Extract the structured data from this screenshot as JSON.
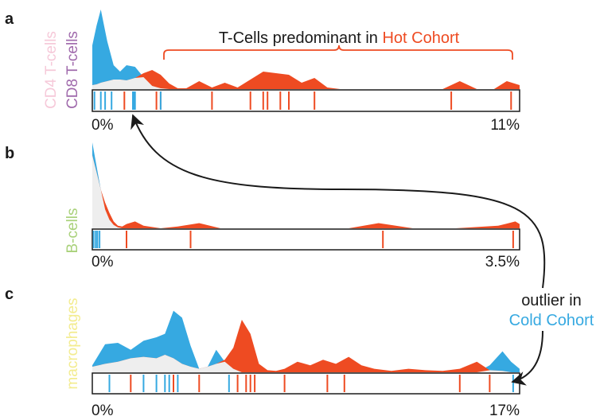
{
  "colors": {
    "hot": "#ee4b22",
    "cold": "#36a9e1",
    "overlap": "#eeeeee",
    "cd4": "#f6c9d9",
    "cd8": "#a06aac",
    "bcells": "#a9d17a",
    "macrophages": "#f3ec8f",
    "text": "#1a1a1a"
  },
  "chart_data": [
    {
      "type": "area",
      "panel_label": "a",
      "ylabels": [
        "CD4 T-cells",
        "CD8 T-cells"
      ],
      "annotation": {
        "prefix": "T-Cells predominant in ",
        "highlight": "Hot Cohort",
        "bracket_x": [
          0.17,
          1.0
        ]
      },
      "xmin_label": "0%",
      "xmax_label": "11%",
      "x": [
        0,
        0.01,
        0.02,
        0.035,
        0.05,
        0.065,
        0.08,
        0.1,
        0.12,
        0.14,
        0.16,
        0.18,
        0.2,
        0.22,
        0.25,
        0.28,
        0.31,
        0.34,
        0.37,
        0.4,
        0.43,
        0.46,
        0.49,
        0.52,
        0.55,
        0.58,
        0.62,
        0.66,
        0.7,
        0.74,
        0.78,
        0.82,
        0.86,
        0.9,
        0.94,
        0.97,
        1.0
      ],
      "series": [
        {
          "role": "cold",
          "values": [
            0.55,
            0.8,
            1.0,
            0.6,
            0.3,
            0.22,
            0.3,
            0.28,
            0.15,
            0.04,
            0.01,
            0,
            0,
            0,
            0,
            0,
            0,
            0,
            0,
            0,
            0,
            0,
            0,
            0,
            0,
            0,
            0,
            0,
            0,
            0,
            0,
            0,
            0,
            0,
            0,
            0,
            0
          ]
        },
        {
          "role": "hot",
          "values": [
            0.05,
            0.06,
            0.08,
            0.1,
            0.12,
            0.12,
            0.11,
            0.14,
            0.2,
            0.24,
            0.18,
            0.07,
            0.01,
            0.01,
            0.1,
            0.02,
            0.08,
            0.02,
            0.12,
            0.22,
            0.2,
            0.18,
            0.08,
            0.14,
            0.02,
            0.0,
            0.0,
            0.0,
            0.0,
            0.0,
            0.0,
            0.0,
            0.1,
            0.0,
            0.0,
            0.1,
            0.05
          ]
        }
      ],
      "rug": {
        "cold": [
          0.005,
          0.02,
          0.03,
          0.045,
          0.095,
          0.098,
          0.1,
          0.16
        ],
        "hot": [
          0.075,
          0.16,
          0.15,
          0.28,
          0.37,
          0.4,
          0.41,
          0.44,
          0.46,
          0.52,
          0.84,
          0.98
        ]
      }
    },
    {
      "type": "area",
      "panel_label": "b",
      "ylabels": [
        "B-cells"
      ],
      "xmin_label": "0%",
      "xmax_label": "3.5%",
      "x": [
        0,
        0.01,
        0.02,
        0.03,
        0.04,
        0.05,
        0.06,
        0.07,
        0.08,
        0.1,
        0.12,
        0.16,
        0.2,
        0.25,
        0.3,
        0.4,
        0.5,
        0.6,
        0.67,
        0.75,
        0.85,
        0.95,
        0.99,
        1.0
      ],
      "series": [
        {
          "role": "cold",
          "values": [
            1.0,
            0.72,
            0.45,
            0.22,
            0.1,
            0.04,
            0.01,
            0,
            0,
            0,
            0,
            0,
            0,
            0,
            0,
            0,
            0,
            0,
            0,
            0,
            0,
            0,
            0,
            0
          ]
        },
        {
          "role": "hot",
          "values": [
            0.85,
            0.65,
            0.45,
            0.3,
            0.18,
            0.08,
            0.03,
            0.02,
            0.05,
            0.08,
            0.03,
            0.0,
            0.02,
            0.06,
            0.0,
            0.0,
            0.0,
            0.0,
            0.06,
            0.0,
            0.0,
            0.03,
            0.08,
            0.05
          ]
        }
      ],
      "rug": {
        "cold": [
          0.003,
          0.008,
          0.012,
          0.017
        ],
        "hot": [
          0.08,
          0.23,
          0.68,
          0.985
        ]
      }
    },
    {
      "type": "area",
      "panel_label": "c",
      "ylabels": [
        "macrophages"
      ],
      "callout": {
        "line1": "outlier in",
        "line2": "Cold Cohort"
      },
      "xmin_label": "0%",
      "xmax_label": "17%",
      "x": [
        0,
        0.03,
        0.06,
        0.09,
        0.12,
        0.15,
        0.17,
        0.19,
        0.21,
        0.23,
        0.25,
        0.27,
        0.29,
        0.31,
        0.33,
        0.35,
        0.37,
        0.39,
        0.41,
        0.43,
        0.45,
        0.48,
        0.51,
        0.54,
        0.57,
        0.6,
        0.63,
        0.66,
        0.7,
        0.74,
        0.78,
        0.82,
        0.86,
        0.9,
        0.93,
        0.96,
        0.98,
        1.0
      ],
      "series": [
        {
          "role": "cold",
          "values": [
            0.1,
            0.4,
            0.42,
            0.32,
            0.45,
            0.5,
            0.55,
            0.88,
            0.78,
            0.38,
            0.05,
            0.08,
            0.32,
            0.15,
            0.05,
            0,
            0,
            0,
            0,
            0,
            0,
            0,
            0,
            0,
            0,
            0,
            0,
            0,
            0,
            0,
            0,
            0,
            0,
            0,
            0.1,
            0.3,
            0.15,
            0.05
          ]
        },
        {
          "role": "hot",
          "values": [
            0.08,
            0.12,
            0.15,
            0.2,
            0.22,
            0.2,
            0.25,
            0.2,
            0.12,
            0.08,
            0.05,
            0.08,
            0.12,
            0.18,
            0.35,
            0.75,
            0.55,
            0.12,
            0.03,
            0.02,
            0.05,
            0.15,
            0.1,
            0.18,
            0.12,
            0.22,
            0.1,
            0.05,
            0.02,
            0.05,
            0.03,
            0.02,
            0.05,
            0.15,
            0.03,
            0.02,
            0.0,
            0.0
          ]
        }
      ],
      "rug": {
        "cold": [
          0.04,
          0.12,
          0.15,
          0.17,
          0.18,
          0.2,
          0.32,
          0.985
        ],
        "hot": [
          0.09,
          0.19,
          0.25,
          0.34,
          0.36,
          0.37,
          0.38,
          0.45,
          0.55,
          0.59,
          0.86,
          0.93
        ]
      }
    }
  ]
}
